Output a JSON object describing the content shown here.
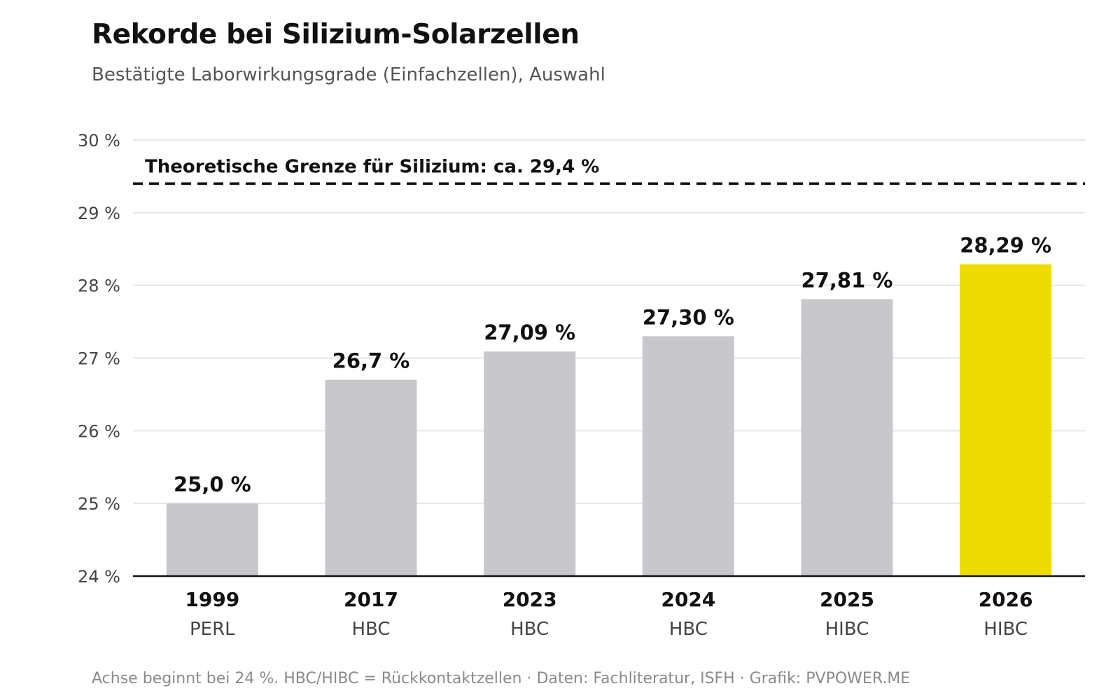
{
  "chart_data": {
    "type": "bar",
    "title": "Rekorde bei Silizium-Solarzellen",
    "subtitle": "Bestätigte Laborwirkungsgrade (Einfachzellen), Auswahl",
    "categories": [
      "1999",
      "2017",
      "2023",
      "2024",
      "2025",
      "2026"
    ],
    "sublabels": [
      "PERL",
      "HBC",
      "HBC",
      "HBC",
      "HIBC",
      "HIBC"
    ],
    "values": [
      25.0,
      26.7,
      27.09,
      27.3,
      27.81,
      28.29
    ],
    "value_labels": [
      "25,0 %",
      "26,7 %",
      "27,09 %",
      "27,30 %",
      "27,81 %",
      "28,29 %"
    ],
    "ylim": [
      24,
      30
    ],
    "y_ticks": [
      24,
      25,
      26,
      27,
      28,
      29,
      30
    ],
    "y_tick_labels": [
      "24 %",
      "25 %",
      "26 %",
      "27 %",
      "28 %",
      "29 %",
      "30 %"
    ],
    "grid": true,
    "reference_line": {
      "value": 29.4,
      "label": "Theoretische Grenze für Silizium: ca. 29,4 %",
      "style": "dashed"
    },
    "colors": {
      "bar": "#c8c8cc",
      "highlight_bar": "#eedc00",
      "axis": "#111111",
      "grid": "#e6e6e6",
      "reference": "#111111"
    },
    "highlight_index": 5,
    "footnote": "Achse beginnt bei 24 %. HBC/HIBC = Rückkontaktzellen · Daten: Fachliteratur, ISFH · Grafik: PVPOWER.ME"
  }
}
